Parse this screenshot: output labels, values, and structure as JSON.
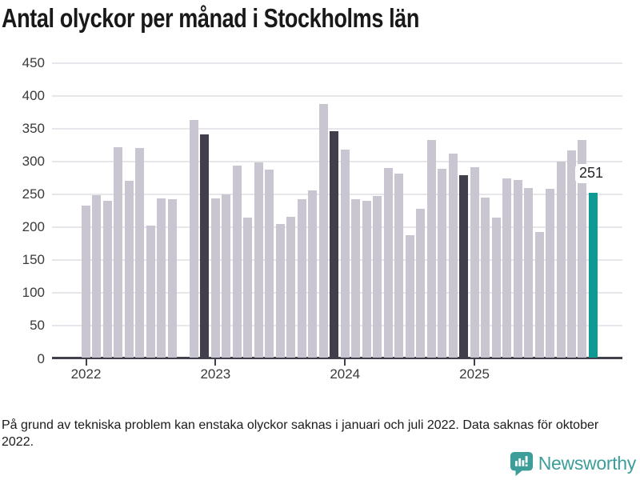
{
  "title": "Antal olyckor per månad i Stockholms län",
  "footnote": "På grund av tekniska problem kan enstaka olyckor saknas i januari och juli 2022. Data saknas för oktober 2022.",
  "logo": {
    "name": "Newsworthy"
  },
  "colors": {
    "bar_default": "#c9c6d2",
    "bar_reference": "#403f4b",
    "bar_latest": "#0d9a92",
    "axis": "#41404b",
    "gridline": "#e7e6ea",
    "tick_label": "#3a3a3a",
    "title_text": "#191919",
    "logo_teal": "#3d9e99"
  },
  "chart_data": {
    "type": "bar",
    "title": "Antal olyckor per månad i Stockholms län",
    "xlabel": "",
    "ylabel": "",
    "ylim": [
      0,
      450
    ],
    "yticks": [
      0,
      50,
      100,
      150,
      200,
      250,
      300,
      350,
      400,
      450
    ],
    "grid": true,
    "legend": "none",
    "months": [
      "2022-01",
      "2022-02",
      "2022-03",
      "2022-04",
      "2022-05",
      "2022-06",
      "2022-07",
      "2022-08",
      "2022-09",
      "2022-10",
      "2022-11",
      "2022-12",
      "2023-01",
      "2023-02",
      "2023-03",
      "2023-04",
      "2023-05",
      "2023-06",
      "2023-07",
      "2023-08",
      "2023-09",
      "2023-10",
      "2023-11",
      "2023-12",
      "2024-01",
      "2024-02",
      "2024-03",
      "2024-04",
      "2024-05",
      "2024-06",
      "2024-07",
      "2024-08",
      "2024-09",
      "2024-10",
      "2024-11",
      "2024-12",
      "2025-01",
      "2025-02",
      "2025-03",
      "2025-04",
      "2025-05",
      "2025-06",
      "2025-07",
      "2025-08",
      "2025-09",
      "2025-10",
      "2025-11",
      "2025-12"
    ],
    "values": [
      232,
      247,
      239,
      320,
      269,
      319,
      201,
      243,
      242,
      null,
      362,
      340,
      243,
      249,
      292,
      213,
      297,
      287,
      204,
      215,
      241,
      255,
      386,
      345,
      317,
      241,
      239,
      246,
      289,
      280,
      187,
      227,
      331,
      288,
      311,
      278,
      290,
      244,
      214,
      273,
      271,
      258,
      192,
      257,
      299,
      316,
      331,
      251
    ],
    "missing_months": [
      "2022-10"
    ],
    "highlight_reference_months": [
      "2022-12",
      "2023-12",
      "2024-12"
    ],
    "highlight_latest_month": "2025-12",
    "annotation": {
      "month": "2025-12",
      "label": "251"
    },
    "xticks": [
      {
        "label": "2022",
        "month": "2022-01"
      },
      {
        "label": "2023",
        "month": "2023-01"
      },
      {
        "label": "2024",
        "month": "2024-01"
      },
      {
        "label": "2025",
        "month": "2025-01"
      }
    ]
  }
}
